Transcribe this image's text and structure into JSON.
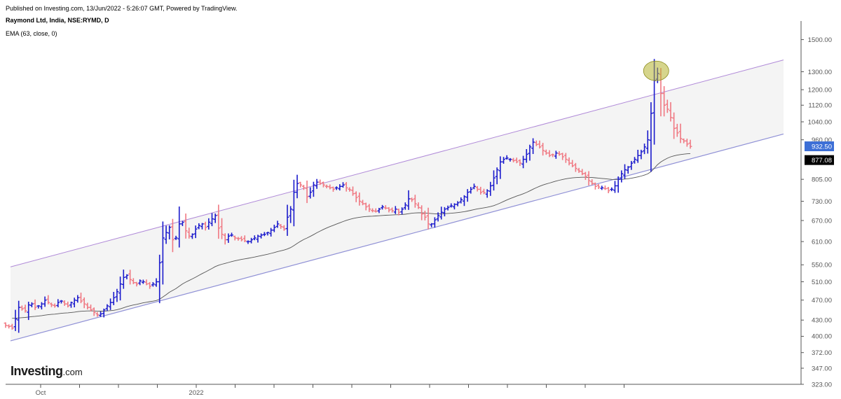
{
  "header": {
    "published": "Published on Investing.com, 13/Jun/2022 - 5:26:07 GMT, Powered by TradingView.",
    "symbol": "Raymond Ltd, India, NSE:RYMD, D",
    "indicator": "EMA (63, close, 0)"
  },
  "logo": {
    "main": "Investing",
    "suffix": ".com"
  },
  "colors": {
    "up": "#1a1acc",
    "down": "#f07882",
    "ema": "#555555",
    "channel_upper": "#b08ad8",
    "channel_lower": "#8f90d6",
    "channel_fill": "#f4f4f4",
    "highlight": "#b5b32e",
    "last_price_tag": "#3d6fd6",
    "ema_tag": "#000000"
  },
  "chart_data": {
    "type": "ohlc_bar",
    "title": "Raymond Ltd, India, NSE:RYMD, D",
    "y_scale": "log",
    "ylim": [
      323,
      1560
    ],
    "y_ticks": [
      "1500.00",
      "1300.00",
      "1200.00",
      "1120.00",
      "1040.00",
      "960.00",
      "805.00",
      "730.00",
      "670.00",
      "610.00",
      "550.00",
      "510.00",
      "470.00",
      "430.00",
      "400.00",
      "372.00",
      "347.00",
      "323.00"
    ],
    "x_tick_labels": [
      "Oct",
      "",
      "",
      "",
      "2022",
      "",
      "",
      "",
      "",
      "",
      "",
      "",
      "",
      "",
      "",
      ""
    ],
    "last_price": "932.50",
    "ema_last": "877.08",
    "trend_channel": {
      "upper_line": {
        "start": 545,
        "end": 1370
      },
      "lower_line": {
        "start": 392,
        "end": 985
      }
    },
    "highlight_marker": {
      "label": "peak",
      "price": 1305
    },
    "closes": [
      420,
      418,
      415,
      432,
      455,
      452,
      448,
      460,
      462,
      455,
      458,
      462,
      470,
      465,
      460,
      458,
      465,
      468,
      462,
      458,
      465,
      470,
      475,
      468,
      462,
      455,
      450,
      445,
      440,
      442,
      450,
      458,
      465,
      475,
      488,
      505,
      520,
      525,
      515,
      508,
      505,
      512,
      510,
      505,
      500,
      505,
      510,
      555,
      620,
      635,
      650,
      615,
      620,
      660,
      665,
      640,
      625,
      630,
      645,
      655,
      660,
      650,
      665,
      675,
      685,
      648,
      630,
      615,
      625,
      628,
      620,
      618,
      615,
      612,
      610,
      615,
      620,
      625,
      628,
      630,
      635,
      642,
      650,
      660,
      652,
      645,
      680,
      705,
      760,
      790,
      785,
      775,
      745,
      760,
      785,
      795,
      790,
      785,
      780,
      775,
      770,
      775,
      780,
      785,
      775,
      768,
      755,
      742,
      730,
      722,
      712,
      705,
      700,
      698,
      705,
      712,
      708,
      702,
      700,
      705,
      695,
      705,
      718,
      738,
      735,
      722,
      710,
      690,
      680,
      660,
      660,
      672,
      685,
      695,
      705,
      710,
      715,
      720,
      725,
      735,
      745,
      760,
      770,
      780,
      770,
      760,
      758,
      765,
      782,
      810,
      840,
      870,
      880,
      885,
      880,
      875,
      870,
      865,
      880,
      900,
      930,
      950,
      940,
      930,
      915,
      905,
      895,
      898,
      905,
      900,
      890,
      880,
      865,
      855,
      845,
      835,
      825,
      815,
      800,
      790,
      780,
      778,
      775,
      772,
      765,
      770,
      782,
      805,
      825,
      840,
      850,
      865,
      880,
      895,
      910,
      930,
      960,
      1080,
      1250,
      1290,
      1180,
      1120,
      1100,
      1060,
      1010,
      990,
      965,
      955,
      942,
      932
    ]
  }
}
